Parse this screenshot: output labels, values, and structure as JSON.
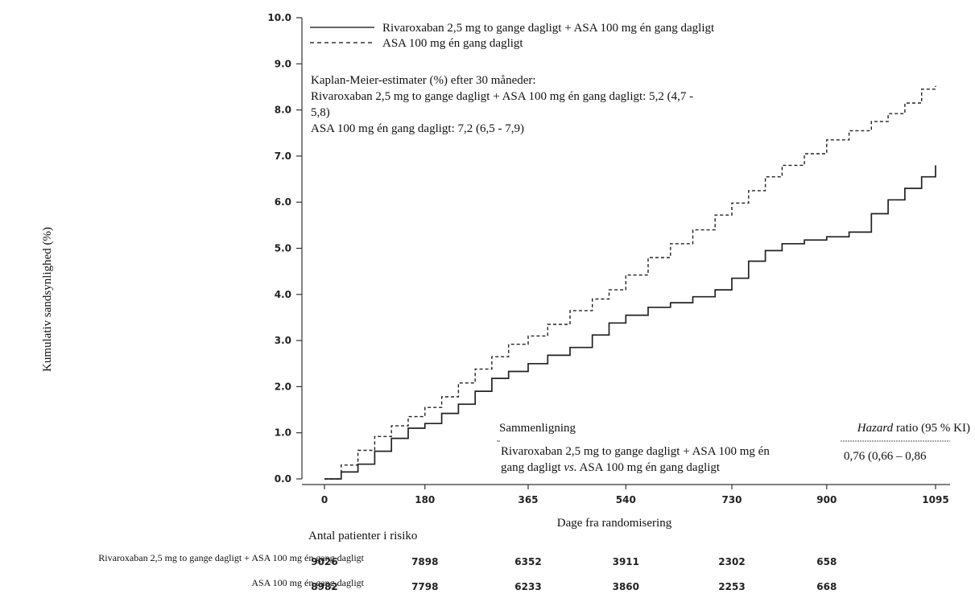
{
  "chart_data": {
    "type": "line",
    "xlabel": "Dage fra randomisering",
    "ylabel": "Kumulativ sandsynlighed (%)",
    "xlim": [
      0,
      1095
    ],
    "ylim": [
      0,
      10
    ],
    "x_ticks": [
      0,
      180,
      365,
      540,
      730,
      900,
      1095
    ],
    "y_ticks": [
      "0.0",
      "1.0",
      "2.0",
      "3.0",
      "4.0",
      "5.0",
      "6.0",
      "7.0",
      "8.0",
      "9.0",
      "10.0"
    ],
    "grid": false,
    "legend_position": "top-left",
    "series": [
      {
        "name": "Rivaroxaban 2,5 mg to gange dagligt  + ASA 100 mg én gang dagligt",
        "style": "solid",
        "color": "#222222",
        "x": [
          0,
          30,
          60,
          90,
          120,
          150,
          180,
          210,
          240,
          270,
          300,
          330,
          365,
          400,
          440,
          480,
          510,
          540,
          580,
          620,
          660,
          700,
          730,
          760,
          790,
          820,
          860,
          900,
          940,
          980,
          1010,
          1040,
          1070,
          1095
        ],
        "y": [
          0,
          0.15,
          0.32,
          0.6,
          0.88,
          1.1,
          1.2,
          1.42,
          1.62,
          1.9,
          2.18,
          2.33,
          2.5,
          2.68,
          2.85,
          3.12,
          3.38,
          3.55,
          3.72,
          3.82,
          3.95,
          4.1,
          4.35,
          4.72,
          4.95,
          5.1,
          5.18,
          5.25,
          5.35,
          5.75,
          6.05,
          6.3,
          6.55,
          6.8
        ]
      },
      {
        "name": "ASA 100 mg én gang dagligt",
        "style": "dashed",
        "color": "#222222",
        "x": [
          0,
          30,
          60,
          90,
          120,
          150,
          180,
          210,
          240,
          270,
          300,
          330,
          365,
          400,
          440,
          480,
          510,
          540,
          580,
          620,
          660,
          700,
          730,
          760,
          790,
          820,
          860,
          900,
          940,
          980,
          1010,
          1040,
          1070,
          1095
        ],
        "y": [
          0,
          0.3,
          0.62,
          0.92,
          1.15,
          1.35,
          1.55,
          1.78,
          2.08,
          2.38,
          2.65,
          2.92,
          3.1,
          3.35,
          3.65,
          3.9,
          4.1,
          4.42,
          4.8,
          5.1,
          5.4,
          5.72,
          5.98,
          6.25,
          6.55,
          6.8,
          7.05,
          7.35,
          7.55,
          7.75,
          7.92,
          8.15,
          8.45,
          8.52
        ]
      }
    ],
    "annotation": {
      "lines": [
        "Kaplan-Meier-estimater (%) efter 30 måneder:",
        "Rivaroxaban 2,5 mg to gange dagligt + ASA 100 mg én gang dagligt: 5,2 (4,7 -",
        "5,8)",
        "ASA 100 mg én gang dagligt: 7,2 (6,5 - 7,9)"
      ]
    },
    "comparison_table": {
      "header_left": "Sammenligning",
      "header_right_italic": "Hazard",
      "header_right_rest": " ratio (95 % KI)",
      "row_line1": "Rivaroxaban 2,5 mg to gange dagligt + ASA 100 mg én",
      "row_line2_start": "gang dagligt ",
      "row_line2_italic": "vs.",
      "row_line2_end": " ASA 100 mg én gang dagligt",
      "hr_value": "0,76 (0,66 – 0,86"
    },
    "risk_table": {
      "title": "Antal patienter i risiko",
      "rows": [
        {
          "label": "Rivaroxaban 2,5 mg to gange dagligt + ASA 100 mg én gang dagligt",
          "values": [
            "9026",
            "7898",
            "6352",
            "3911",
            "2302",
            "658"
          ]
        },
        {
          "label": "ASA 100 mg én gang dagligt",
          "values": [
            "8982",
            "7798",
            "6233",
            "3860",
            "2253",
            "668"
          ]
        }
      ]
    }
  }
}
